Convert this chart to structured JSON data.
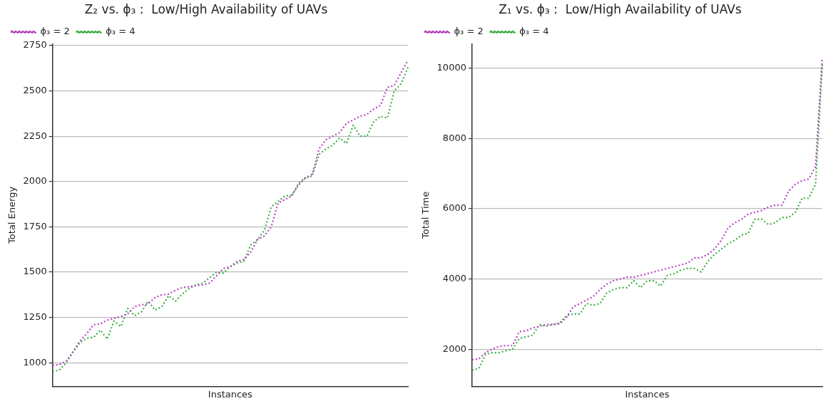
{
  "chart_data": [
    {
      "type": "line",
      "title": "Z₂ vs. ϕ₃ :  Low/High Availability of UAVs",
      "xlabel": "Instances",
      "ylabel": "Total Energy",
      "categories": [
        null,
        null,
        null,
        null,
        null,
        null,
        null,
        null,
        null,
        null,
        null,
        null,
        null,
        null,
        null,
        null,
        null,
        null,
        null,
        null,
        null,
        null,
        null,
        null,
        null,
        null,
        null,
        null,
        null,
        null,
        null,
        null,
        null,
        null,
        null,
        null,
        null,
        null,
        null,
        null,
        null,
        null,
        null,
        null,
        null,
        null,
        null,
        null,
        null,
        null,
        null,
        null,
        null
      ],
      "series": [
        {
          "name": "ϕ₃ = 2",
          "color": "#b844c0",
          "values": [
            985,
            990,
            1010,
            1060,
            1120,
            1160,
            1210,
            1215,
            1235,
            1245,
            1255,
            1270,
            1310,
            1320,
            1325,
            1360,
            1375,
            1380,
            1400,
            1415,
            1420,
            1425,
            1430,
            1440,
            1480,
            1520,
            1530,
            1560,
            1570,
            1610,
            1680,
            1700,
            1750,
            1880,
            1900,
            1920,
            1990,
            2020,
            2040,
            2180,
            2230,
            2250,
            2270,
            2320,
            2340,
            2360,
            2370,
            2400,
            2420,
            2520,
            2530,
            2600,
            2670
          ]
        },
        {
          "name": "ϕ₃ = 4",
          "color": "#3cb043",
          "values": [
            950,
            960,
            1000,
            1060,
            1110,
            1135,
            1140,
            1180,
            1130,
            1230,
            1200,
            1300,
            1260,
            1280,
            1340,
            1290,
            1310,
            1370,
            1340,
            1380,
            1410,
            1430,
            1440,
            1470,
            1500,
            1495,
            1530,
            1550,
            1560,
            1650,
            1680,
            1730,
            1860,
            1890,
            1920,
            1925,
            1980,
            2020,
            2030,
            2150,
            2180,
            2200,
            2240,
            2210,
            2310,
            2250,
            2250,
            2330,
            2360,
            2350,
            2500,
            2540,
            2630
          ]
        }
      ],
      "ylim": [
        870,
        2760
      ],
      "yticks": [
        1000,
        1250,
        1500,
        1750,
        2000,
        2250,
        2500,
        2750
      ],
      "grid": "y",
      "legend": "top left",
      "tick_labels": "y",
      "marker": "none",
      "line_style": "dotted"
    },
    {
      "type": "line",
      "title": "Z₁ vs. ϕ₃ :  Low/High Availability of UAVs",
      "xlabel": "Instances",
      "ylabel": "Total Time",
      "categories": [
        null,
        null,
        null,
        null,
        null,
        null,
        null,
        null,
        null,
        null,
        null,
        null,
        null,
        null,
        null,
        null,
        null,
        null,
        null,
        null,
        null,
        null,
        null,
        null,
        null,
        null,
        null,
        null,
        null,
        null,
        null,
        null,
        null,
        null,
        null,
        null,
        null,
        null,
        null,
        null,
        null,
        null,
        null,
        null,
        null,
        null,
        null,
        null,
        null,
        null,
        null,
        null,
        null
      ],
      "series": [
        {
          "name": "ϕ₃ = 2",
          "color": "#b844c0",
          "values": [
            1700,
            1720,
            1900,
            2000,
            2080,
            2100,
            2100,
            2500,
            2520,
            2600,
            2650,
            2700,
            2700,
            2720,
            2900,
            3200,
            3300,
            3400,
            3500,
            3700,
            3850,
            3950,
            4000,
            4050,
            4050,
            4100,
            4150,
            4200,
            4250,
            4300,
            4350,
            4400,
            4450,
            4600,
            4600,
            4700,
            4850,
            5100,
            5450,
            5600,
            5700,
            5850,
            5900,
            5950,
            6050,
            6100,
            6100,
            6500,
            6700,
            6800,
            6850,
            7200,
            10300
          ]
        },
        {
          "name": "ϕ₃ = 4",
          "color": "#3cb043",
          "values": [
            1400,
            1450,
            1850,
            1900,
            1900,
            1950,
            2000,
            2300,
            2350,
            2400,
            2700,
            2650,
            2700,
            2750,
            2950,
            3000,
            3000,
            3300,
            3250,
            3300,
            3600,
            3700,
            3750,
            3750,
            3950,
            3750,
            3950,
            3950,
            3800,
            4100,
            4150,
            4250,
            4300,
            4300,
            4200,
            4500,
            4700,
            4850,
            5000,
            5100,
            5250,
            5300,
            5700,
            5700,
            5550,
            5600,
            5750,
            5750,
            5900,
            6300,
            6300,
            6700,
            10100
          ]
        }
      ],
      "ylim": [
        940,
        10700
      ],
      "yticks": [
        2000,
        4000,
        6000,
        8000,
        10000
      ],
      "grid": "y",
      "legend": "top left",
      "tick_labels": "y",
      "marker": "none",
      "line_style": "dotted"
    }
  ]
}
